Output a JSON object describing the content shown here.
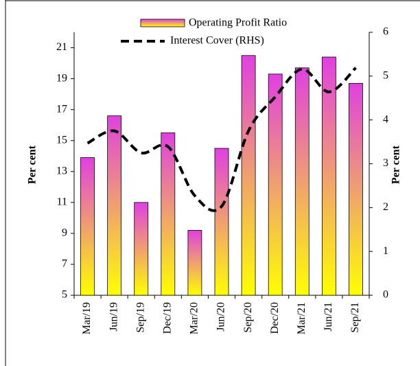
{
  "chart_data": {
    "type": "bar_line",
    "categories": [
      "Mar/19",
      "Jun/19",
      "Sep/19",
      "Dec/19",
      "Mar/20",
      "Jun/20",
      "Sep/20",
      "Dec/20",
      "Mar/21",
      "Jun/21",
      "Sep/21"
    ],
    "series": [
      {
        "name": "Operating Profit Ratio",
        "type": "bar",
        "color": [
          "#e040e0",
          "#ffff00"
        ],
        "values": [
          13.9,
          16.6,
          11.0,
          15.5,
          9.2,
          14.5,
          20.5,
          19.3,
          19.7,
          20.4,
          18.7
        ]
      },
      {
        "name": "Interest Cover (RHS)",
        "type": "line",
        "axis": "y2",
        "color": "#000000",
        "values": [
          3.47,
          3.75,
          3.25,
          3.39,
          2.27,
          2.03,
          3.75,
          4.53,
          5.16,
          4.64,
          5.19
        ]
      }
    ],
    "ylabel": "Per cent",
    "y2label": "Per cent",
    "ylim": [
      5,
      22
    ],
    "yticks": [
      5,
      7,
      9,
      11,
      13,
      15,
      17,
      19,
      21
    ],
    "y2lim": [
      0,
      6
    ],
    "y2ticks": [
      0,
      1,
      2,
      3,
      4,
      5,
      6
    ]
  }
}
